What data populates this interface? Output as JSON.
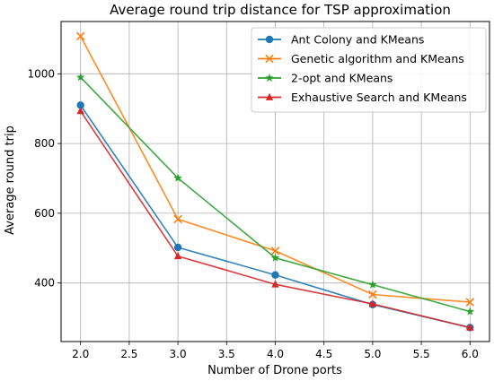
{
  "chart_data": {
    "type": "line",
    "title": "Average round trip distance for TSP approximation",
    "xlabel": "Number of Drone ports",
    "ylabel": "Average round trip",
    "x": [
      2.0,
      3.0,
      4.0,
      5.0,
      6.0
    ],
    "xlim": [
      1.8,
      6.2
    ],
    "ylim": [
      232,
      1150
    ],
    "xticks": [
      2.0,
      2.5,
      3.0,
      3.5,
      4.0,
      4.5,
      5.0,
      5.5,
      6.0
    ],
    "xtick_labels": [
      "2.0",
      "2.5",
      "3.0",
      "3.5",
      "4.0",
      "4.5",
      "5.0",
      "5.5",
      "6.0"
    ],
    "yticks": [
      400,
      600,
      800,
      1000
    ],
    "ytick_labels": [
      "400",
      "600",
      "800",
      "1000"
    ],
    "grid": true,
    "legend_position": "top-right",
    "series": [
      {
        "name": "Ant Colony and KMeans",
        "color": "#1f77b4",
        "marker": "circle",
        "values": [
          910,
          502,
          423,
          338,
          272
        ]
      },
      {
        "name": "Genetic algorithm and KMeans",
        "color": "#ff7f0e",
        "marker": "x",
        "values": [
          1108,
          583,
          492,
          367,
          345
        ]
      },
      {
        "name": "2-opt and KMeans",
        "color": "#2ca02c",
        "marker": "star",
        "values": [
          990,
          701,
          472,
          395,
          318
        ]
      },
      {
        "name": "Exhaustive Search and KMeans",
        "color": "#d62728",
        "marker": "triangle",
        "values": [
          893,
          477,
          396,
          340,
          272
        ]
      }
    ]
  }
}
